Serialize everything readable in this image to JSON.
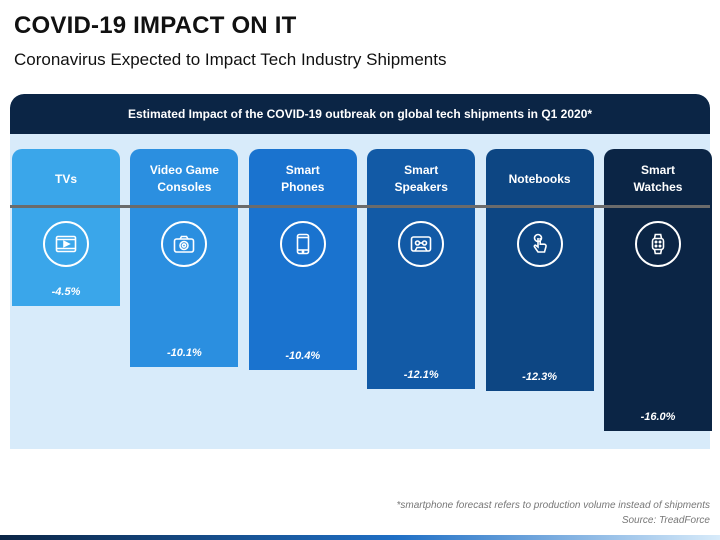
{
  "title": "COVID-19 IMPACT ON IT",
  "subtitle": "Coronavirus Expected to Impact Tech Industry Shipments",
  "panel_header": "Estimated Impact of the COVID-19 outbreak on global tech shipments in Q1 2020*",
  "footnote": "*smartphone forecast refers to production volume instead of shipments",
  "source": "Source: TreadForce",
  "chart_data": {
    "type": "bar",
    "categories": [
      "TVs",
      "Video Game Consoles",
      "Smart Phones",
      "Smart Speakers",
      "Notebooks",
      "Smart Watches"
    ],
    "category_lines": [
      [
        "TVs"
      ],
      [
        "Video Game",
        "Consoles"
      ],
      [
        "Smart",
        "Phones"
      ],
      [
        "Smart",
        "Speakers"
      ],
      [
        "Notebooks"
      ],
      [
        "Smart",
        "Watches"
      ]
    ],
    "values": [
      -4.5,
      -10.1,
      -10.4,
      -12.1,
      -12.3,
      -16.0
    ],
    "value_labels": [
      "-4.5%",
      "-10.1%",
      "-10.4%",
      "-12.1%",
      "-12.3%",
      "-16.0%"
    ],
    "icons": [
      "video-play-icon",
      "camera-icon",
      "smartphone-icon",
      "cassette-icon",
      "touch-hand-icon",
      "smartwatch-icon"
    ],
    "colors": [
      "#3aa6ea",
      "#2b8fe0",
      "#1a73cf",
      "#125aa6",
      "#0d4683",
      "#0b2545"
    ],
    "ylim": [
      0,
      -16
    ]
  }
}
